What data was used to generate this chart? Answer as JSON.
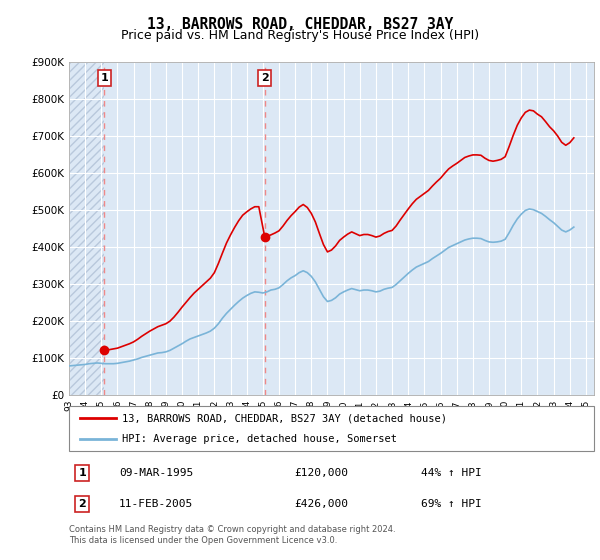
{
  "title": "13, BARROWS ROAD, CHEDDAR, BS27 3AY",
  "subtitle": "Price paid vs. HM Land Registry's House Price Index (HPI)",
  "ylim": [
    0,
    900000
  ],
  "yticks": [
    0,
    100000,
    200000,
    300000,
    400000,
    500000,
    600000,
    700000,
    800000,
    900000
  ],
  "ytick_labels": [
    "£0",
    "£100K",
    "£200K",
    "£300K",
    "£400K",
    "£500K",
    "£600K",
    "£700K",
    "£800K",
    "£900K"
  ],
  "purchase1": {
    "date_num": 1995.19,
    "price": 120000,
    "label": "1",
    "date_str": "09-MAR-1995",
    "price_str": "£120,000",
    "hpi_str": "44% ↑ HPI"
  },
  "purchase2": {
    "date_num": 2005.12,
    "price": 426000,
    "label": "2",
    "date_str": "11-FEB-2005",
    "price_str": "£426,000",
    "hpi_str": "69% ↑ HPI"
  },
  "hpi_line_color": "#7ab4d8",
  "price_line_color": "#dd0000",
  "dashed_line_color": "#ee8888",
  "marker_color": "#dd0000",
  "background_plot": "#dce8f5",
  "hatch_color": "#b8c8dc",
  "grid_color": "#ffffff",
  "legend_label1": "13, BARROWS ROAD, CHEDDAR, BS27 3AY (detached house)",
  "legend_label2": "HPI: Average price, detached house, Somerset",
  "footnote": "Contains HM Land Registry data © Crown copyright and database right 2024.\nThis data is licensed under the Open Government Licence v3.0.",
  "hpi_data": {
    "years": [
      1993.0,
      1993.25,
      1993.5,
      1993.75,
      1994.0,
      1994.25,
      1994.5,
      1994.75,
      1995.0,
      1995.25,
      1995.5,
      1995.75,
      1996.0,
      1996.25,
      1996.5,
      1996.75,
      1997.0,
      1997.25,
      1997.5,
      1997.75,
      1998.0,
      1998.25,
      1998.5,
      1998.75,
      1999.0,
      1999.25,
      1999.5,
      1999.75,
      2000.0,
      2000.25,
      2000.5,
      2000.75,
      2001.0,
      2001.25,
      2001.5,
      2001.75,
      2002.0,
      2002.25,
      2002.5,
      2002.75,
      2003.0,
      2003.25,
      2003.5,
      2003.75,
      2004.0,
      2004.25,
      2004.5,
      2004.75,
      2005.0,
      2005.25,
      2005.5,
      2005.75,
      2006.0,
      2006.25,
      2006.5,
      2006.75,
      2007.0,
      2007.25,
      2007.5,
      2007.75,
      2008.0,
      2008.25,
      2008.5,
      2008.75,
      2009.0,
      2009.25,
      2009.5,
      2009.75,
      2010.0,
      2010.25,
      2010.5,
      2010.75,
      2011.0,
      2011.25,
      2011.5,
      2011.75,
      2012.0,
      2012.25,
      2012.5,
      2012.75,
      2013.0,
      2013.25,
      2013.5,
      2013.75,
      2014.0,
      2014.25,
      2014.5,
      2014.75,
      2015.0,
      2015.25,
      2015.5,
      2015.75,
      2016.0,
      2016.25,
      2016.5,
      2016.75,
      2017.0,
      2017.25,
      2017.5,
      2017.75,
      2018.0,
      2018.25,
      2018.5,
      2018.75,
      2019.0,
      2019.25,
      2019.5,
      2019.75,
      2020.0,
      2020.25,
      2020.5,
      2020.75,
      2021.0,
      2021.25,
      2021.5,
      2021.75,
      2022.0,
      2022.25,
      2022.5,
      2022.75,
      2023.0,
      2023.25,
      2023.5,
      2023.75,
      2024.0,
      2024.25
    ],
    "values": [
      78000,
      79000,
      80000,
      81000,
      82000,
      84000,
      85000,
      86000,
      85000,
      84000,
      84000,
      84000,
      85000,
      87000,
      89000,
      91000,
      94000,
      97000,
      101000,
      104000,
      107000,
      110000,
      113000,
      114000,
      116000,
      120000,
      126000,
      132000,
      138000,
      145000,
      151000,
      155000,
      159000,
      163000,
      167000,
      172000,
      180000,
      192000,
      207000,
      220000,
      231000,
      242000,
      252000,
      261000,
      268000,
      274000,
      278000,
      277000,
      275000,
      278000,
      283000,
      285000,
      289000,
      298000,
      308000,
      316000,
      322000,
      330000,
      335000,
      330000,
      320000,
      305000,
      285000,
      265000,
      252000,
      255000,
      262000,
      272000,
      278000,
      283000,
      287000,
      284000,
      281000,
      283000,
      283000,
      281000,
      278000,
      280000,
      285000,
      288000,
      290000,
      298000,
      308000,
      318000,
      328000,
      337000,
      345000,
      350000,
      355000,
      360000,
      368000,
      375000,
      382000,
      390000,
      398000,
      403000,
      408000,
      413000,
      418000,
      421000,
      423000,
      423000,
      422000,
      417000,
      413000,
      412000,
      413000,
      415000,
      420000,
      438000,
      458000,
      475000,
      488000,
      498000,
      502000,
      500000,
      495000,
      490000,
      482000,
      473000,
      465000,
      455000,
      445000,
      440000,
      445000,
      453000
    ]
  },
  "price_paid_data": {
    "years": [
      1995.19,
      1995.5,
      1995.75,
      1996.0,
      1996.25,
      1996.5,
      1996.75,
      1997.0,
      1997.25,
      1997.5,
      1997.75,
      1998.0,
      1998.25,
      1998.5,
      1998.75,
      1999.0,
      1999.25,
      1999.5,
      1999.75,
      2000.0,
      2000.25,
      2000.5,
      2000.75,
      2001.0,
      2001.25,
      2001.5,
      2001.75,
      2002.0,
      2002.25,
      2002.5,
      2002.75,
      2003.0,
      2003.25,
      2003.5,
      2003.75,
      2004.0,
      2004.25,
      2004.5,
      2004.75,
      2005.12,
      2005.5,
      2005.75,
      2006.0,
      2006.25,
      2006.5,
      2006.75,
      2007.0,
      2007.25,
      2007.5,
      2007.75,
      2008.0,
      2008.25,
      2008.5,
      2008.75,
      2009.0,
      2009.25,
      2009.5,
      2009.75,
      2010.0,
      2010.25,
      2010.5,
      2010.75,
      2011.0,
      2011.25,
      2011.5,
      2011.75,
      2012.0,
      2012.25,
      2012.5,
      2012.75,
      2013.0,
      2013.25,
      2013.5,
      2013.75,
      2014.0,
      2014.25,
      2014.5,
      2014.75,
      2015.0,
      2015.25,
      2015.5,
      2015.75,
      2016.0,
      2016.25,
      2016.5,
      2016.75,
      2017.0,
      2017.25,
      2017.5,
      2017.75,
      2018.0,
      2018.25,
      2018.5,
      2018.75,
      2019.0,
      2019.25,
      2019.5,
      2019.75,
      2020.0,
      2020.25,
      2020.5,
      2020.75,
      2021.0,
      2021.25,
      2021.5,
      2021.75,
      2022.0,
      2022.25,
      2022.5,
      2022.75,
      2023.0,
      2023.25,
      2023.5,
      2023.75,
      2024.0,
      2024.25
    ],
    "values": [
      120000,
      122000,
      124000,
      126000,
      130000,
      134000,
      138000,
      143000,
      150000,
      158000,
      165000,
      172000,
      178000,
      184000,
      188000,
      192000,
      199000,
      210000,
      223000,
      237000,
      250000,
      263000,
      275000,
      285000,
      295000,
      305000,
      315000,
      330000,
      355000,
      383000,
      410000,
      432000,
      452000,
      470000,
      485000,
      494000,
      502000,
      508000,
      508000,
      426000,
      432000,
      437000,
      443000,
      456000,
      471000,
      484000,
      495000,
      507000,
      514000,
      506000,
      490000,
      467000,
      436000,
      406000,
      386000,
      391000,
      402000,
      417000,
      426000,
      434000,
      440000,
      435000,
      430000,
      433000,
      433000,
      430000,
      426000,
      429000,
      436000,
      441000,
      444000,
      456000,
      472000,
      487000,
      502000,
      516000,
      528000,
      536000,
      544000,
      552000,
      564000,
      575000,
      585000,
      598000,
      610000,
      618000,
      625000,
      633000,
      641000,
      645000,
      648000,
      648000,
      647000,
      639000,
      633000,
      631000,
      633000,
      636000,
      643000,
      671000,
      701000,
      728000,
      748000,
      763000,
      769000,
      767000,
      758000,
      751000,
      738000,
      724000,
      713000,
      699000,
      682000,
      674000,
      681000,
      694000
    ]
  }
}
